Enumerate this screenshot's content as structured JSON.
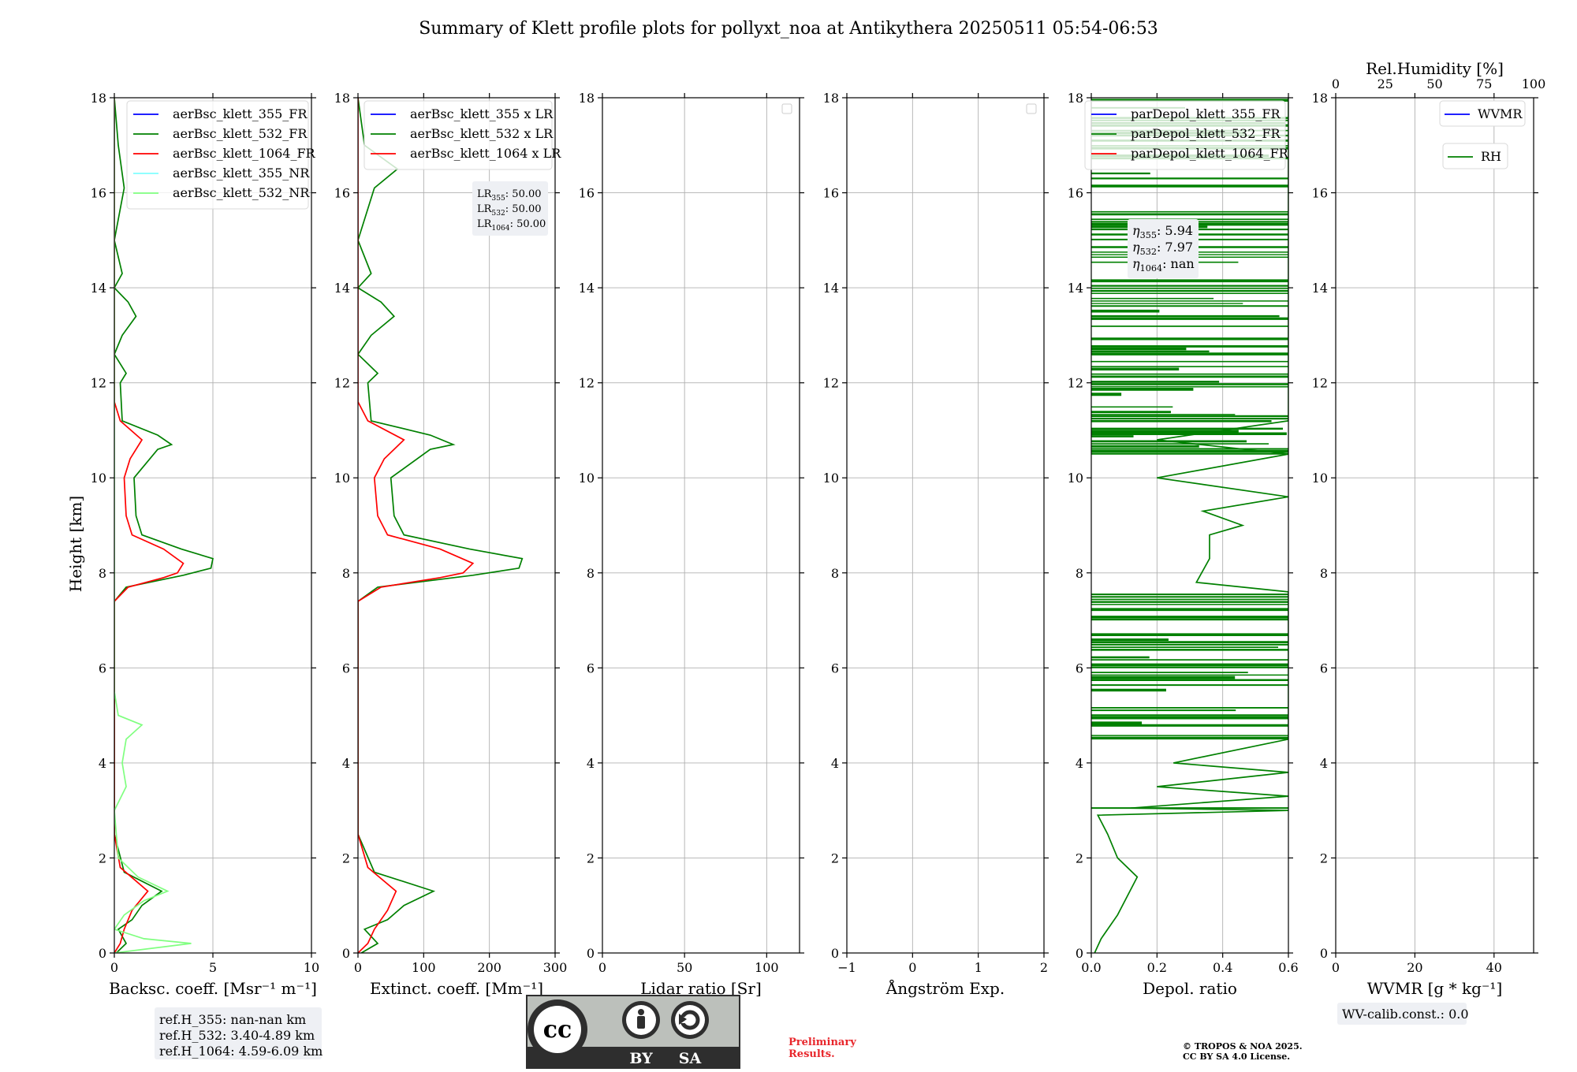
{
  "title": "Summary of Klett profile plots for pollyxt_noa at Antikythera 20250511 05:54-06:53",
  "y_label": "Height [km]",
  "y_ticks": [
    "0",
    "2",
    "4",
    "6",
    "8",
    "10",
    "12",
    "14",
    "16",
    "18"
  ],
  "colors": {
    "ch355": "#0000ff",
    "ch532": "#008000",
    "ch1064": "#ff0000",
    "ch355nr": "#80ffff",
    "ch532nr": "#80ff80",
    "grid": "#b0b0b0",
    "box_bg": "#eef0f4",
    "preliminary": "#e8262b"
  },
  "panels": [
    {
      "id": "bsc",
      "xlabel": "Backsc. coeff. [Msr⁻¹ m⁻¹]",
      "xticks": [
        "0",
        "5",
        "10"
      ],
      "legend": [
        "aerBsc_klett_355_FR",
        "aerBsc_klett_532_FR",
        "aerBsc_klett_1064_FR",
        "aerBsc_klett_355_NR",
        "aerBsc_klett_532_NR"
      ]
    },
    {
      "id": "ext",
      "xlabel": "Extinct. coeff. [Mm⁻¹]",
      "xticks": [
        "0",
        "100",
        "200",
        "300"
      ],
      "legend": [
        "aerBsc_klett_355 x LR",
        "aerBsc_klett_532 x LR",
        "aerBsc_klett_1064 x LR"
      ],
      "lr_box": [
        {
          "sym": "LR",
          "sub": "355",
          "val": ": 50.00"
        },
        {
          "sym": "LR",
          "sub": "532",
          "val": ": 50.00"
        },
        {
          "sym": "LR",
          "sub": "1064",
          "val": ": 50.00"
        }
      ]
    },
    {
      "id": "lr",
      "xlabel": "Lidar ratio [Sr]",
      "xticks": [
        "0",
        "50",
        "100"
      ]
    },
    {
      "id": "ae",
      "xlabel": "Ångström Exp.",
      "xticks": [
        "−1",
        "0",
        "1",
        "2"
      ]
    },
    {
      "id": "dep",
      "xlabel": "Depol. ratio",
      "xticks": [
        "0.0",
        "0.2",
        "0.4",
        "0.6"
      ],
      "legend": [
        "parDepol_klett_355_FR",
        "parDepol_klett_532_FR",
        "parDepol_klett_1064_FR"
      ],
      "eta_box": [
        {
          "sym": "η",
          "sub": "355",
          "val": ": 5.94"
        },
        {
          "sym": "η",
          "sub": "532",
          "val": ": 7.97"
        },
        {
          "sym": "η",
          "sub": "1064",
          "val": ": nan"
        }
      ]
    },
    {
      "id": "wv",
      "xlabel": "WVMR [g * kg⁻¹]",
      "xticks": [
        "0",
        "20",
        "40"
      ],
      "top_label": "Rel.Humidity [%]",
      "top_ticks": [
        "0",
        "25",
        "50",
        "75",
        "100"
      ],
      "legend": [
        "WVMR",
        "RH"
      ]
    }
  ],
  "ref_box": [
    "ref.H_355: nan-nan km",
    "ref.H_532: 3.40-4.89 km",
    "ref.H_1064: 4.59-6.09 km"
  ],
  "wv_box": "WV-calib.const.: 0.0",
  "cc_badge": {
    "by": "BY",
    "sa": "SA"
  },
  "preliminary": [
    "Preliminary",
    "Results."
  ],
  "copyright": [
    "© TROPOS & NOA 2025.",
    "CC BY SA 4.0 License."
  ],
  "chart_data": [
    {
      "type": "line",
      "panel": "Backscatter",
      "xlim": [
        0,
        10
      ],
      "ylim": [
        0,
        18
      ],
      "grid": true,
      "legend": "top-right",
      "series": [
        {
          "name": "aerBsc_klett_532_FR",
          "points": [
            [
              0.1,
              0
            ],
            [
              0.6,
              0.2
            ],
            [
              0.2,
              0.5
            ],
            [
              0.9,
              0.7
            ],
            [
              1.4,
              1.0
            ],
            [
              2.4,
              1.3
            ],
            [
              0.5,
              1.7
            ],
            [
              0,
              2.5
            ],
            [
              0,
              7.4
            ],
            [
              0.6,
              7.7
            ],
            [
              3.5,
              7.95
            ],
            [
              4.9,
              8.1
            ],
            [
              5.0,
              8.3
            ],
            [
              3.4,
              8.5
            ],
            [
              1.4,
              8.8
            ],
            [
              1.1,
              9.2
            ],
            [
              1.0,
              10.0
            ],
            [
              2.2,
              10.6
            ],
            [
              2.9,
              10.7
            ],
            [
              2.2,
              10.9
            ],
            [
              0.4,
              11.2
            ],
            [
              0.3,
              12.0
            ],
            [
              0.6,
              12.2
            ],
            [
              0,
              12.6
            ],
            [
              0.4,
              13.0
            ],
            [
              1.1,
              13.4
            ],
            [
              0.7,
              13.7
            ],
            [
              0,
              14.0
            ],
            [
              0.4,
              14.3
            ],
            [
              0,
              15.0
            ],
            [
              0.5,
              16.1
            ],
            [
              0.2,
              17.0
            ],
            [
              0,
              18
            ]
          ]
        },
        {
          "name": "aerBsc_klett_1064_FR",
          "points": [
            [
              0,
              0
            ],
            [
              0.3,
              0.2
            ],
            [
              0.5,
              0.5
            ],
            [
              0.9,
              0.9
            ],
            [
              1.7,
              1.3
            ],
            [
              0.3,
              1.8
            ],
            [
              0,
              2.5
            ],
            [
              0,
              7.4
            ],
            [
              0.7,
              7.7
            ],
            [
              2.5,
              7.9
            ],
            [
              3.2,
              8.0
            ],
            [
              3.5,
              8.2
            ],
            [
              2.5,
              8.5
            ],
            [
              0.9,
              8.8
            ],
            [
              0.6,
              9.2
            ],
            [
              0.5,
              10.0
            ],
            [
              0.8,
              10.4
            ],
            [
              1.4,
              10.8
            ],
            [
              0.3,
              11.2
            ],
            [
              0,
              11.6
            ],
            [
              0,
              18
            ]
          ]
        },
        {
          "name": "aerBsc_klett_532_NR",
          "points": [
            [
              0,
              0
            ],
            [
              3.9,
              0.2
            ],
            [
              1.5,
              0.3
            ],
            [
              0,
              0.5
            ],
            [
              0.5,
              0.8
            ],
            [
              1.5,
              1.1
            ],
            [
              2.7,
              1.3
            ],
            [
              1.2,
              1.6
            ],
            [
              0.2,
              2.0
            ],
            [
              0,
              3.0
            ],
            [
              0.6,
              3.5
            ],
            [
              0.4,
              4.0
            ],
            [
              0.6,
              4.5
            ],
            [
              1.4,
              4.8
            ],
            [
              0.2,
              5.0
            ],
            [
              0,
              5.5
            ],
            [
              0,
              18
            ]
          ]
        }
      ]
    },
    {
      "type": "line",
      "panel": "Extinction",
      "xlim": [
        0,
        300
      ],
      "ylim": [
        0,
        18
      ],
      "grid": true,
      "legend": "top-right",
      "series": [
        {
          "name": "aerBsc_klett_532 x LR",
          "points": [
            [
              5,
              0
            ],
            [
              30,
              0.2
            ],
            [
              10,
              0.5
            ],
            [
              45,
              0.7
            ],
            [
              70,
              1.0
            ],
            [
              115,
              1.3
            ],
            [
              25,
              1.7
            ],
            [
              0,
              2.5
            ],
            [
              0,
              7.4
            ],
            [
              30,
              7.7
            ],
            [
              175,
              7.95
            ],
            [
              245,
              8.1
            ],
            [
              250,
              8.3
            ],
            [
              170,
              8.5
            ],
            [
              70,
              8.8
            ],
            [
              55,
              9.2
            ],
            [
              50,
              10.0
            ],
            [
              110,
              10.6
            ],
            [
              145,
              10.7
            ],
            [
              110,
              10.9
            ],
            [
              20,
              11.2
            ],
            [
              15,
              12.0
            ],
            [
              30,
              12.2
            ],
            [
              0,
              12.6
            ],
            [
              20,
              13.0
            ],
            [
              55,
              13.4
            ],
            [
              35,
              13.7
            ],
            [
              0,
              14.0
            ],
            [
              20,
              14.3
            ],
            [
              0,
              15.0
            ],
            [
              25,
              16.1
            ],
            [
              60,
              16.5
            ],
            [
              10,
              17.0
            ],
            [
              0,
              18
            ]
          ]
        },
        {
          "name": "aerBsc_klett_1064 x LR",
          "points": [
            [
              0,
              0
            ],
            [
              15,
              0.2
            ],
            [
              25,
              0.5
            ],
            [
              45,
              0.9
            ],
            [
              58,
              1.3
            ],
            [
              15,
              1.8
            ],
            [
              0,
              2.5
            ],
            [
              0,
              7.4
            ],
            [
              35,
              7.7
            ],
            [
              125,
              7.9
            ],
            [
              160,
              8.0
            ],
            [
              175,
              8.2
            ],
            [
              125,
              8.5
            ],
            [
              45,
              8.8
            ],
            [
              30,
              9.2
            ],
            [
              25,
              10.0
            ],
            [
              40,
              10.4
            ],
            [
              70,
              10.8
            ],
            [
              15,
              11.2
            ],
            [
              0,
              11.6
            ],
            [
              0,
              18
            ]
          ]
        }
      ]
    },
    {
      "type": "line",
      "panel": "Lidar ratio",
      "xlim": [
        0,
        120
      ],
      "ylim": [
        0,
        18
      ],
      "grid": true,
      "series": []
    },
    {
      "type": "line",
      "panel": "Angstrom",
      "xlim": [
        -1,
        2
      ],
      "ylim": [
        0,
        18
      ],
      "grid": true,
      "series": []
    },
    {
      "type": "line",
      "panel": "Depolarization",
      "xlim": [
        0,
        0.6
      ],
      "ylim": [
        0,
        18
      ],
      "grid": true,
      "legend": "top-right",
      "series": [
        {
          "name": "parDepol_klett_532_FR",
          "points": [
            [
              0.01,
              0
            ],
            [
              0.03,
              0.3
            ],
            [
              0.05,
              0.5
            ],
            [
              0.08,
              0.8
            ],
            [
              0.14,
              1.6
            ],
            [
              0.08,
              2.0
            ],
            [
              0.05,
              2.5
            ],
            [
              0.02,
              2.9
            ],
            [
              0.6,
              3.0
            ],
            [
              0.12,
              3.05
            ],
            [
              0.6,
              3.3
            ],
            [
              0.2,
              3.5
            ],
            [
              0.6,
              3.8
            ],
            [
              0.25,
              4.0
            ],
            [
              0.6,
              4.5
            ],
            [
              0.6,
              7.6
            ],
            [
              0.32,
              7.8
            ],
            [
              0.36,
              8.3
            ],
            [
              0.36,
              8.8
            ],
            [
              0.46,
              9.0
            ],
            [
              0.34,
              9.3
            ],
            [
              0.6,
              9.6
            ],
            [
              0.2,
              10.0
            ],
            [
              0.6,
              10.5
            ],
            [
              0.2,
              10.8
            ],
            [
              0.6,
              11.2
            ],
            [
              0.6,
              18
            ]
          ]
        }
      ],
      "noise_bands": [
        [
          3.0,
          3.05
        ],
        [
          4.5,
          6.7
        ],
        [
          7.0,
          7.6
        ],
        [
          10.5,
          11.3
        ],
        [
          11.3,
          14.2
        ],
        [
          14.4,
          15.6
        ],
        [
          16.0,
          18.0
        ]
      ]
    },
    {
      "type": "line",
      "panel": "WVMR",
      "xlim": [
        0,
        50
      ],
      "ylim": [
        0,
        18
      ],
      "grid": true,
      "series": []
    }
  ]
}
